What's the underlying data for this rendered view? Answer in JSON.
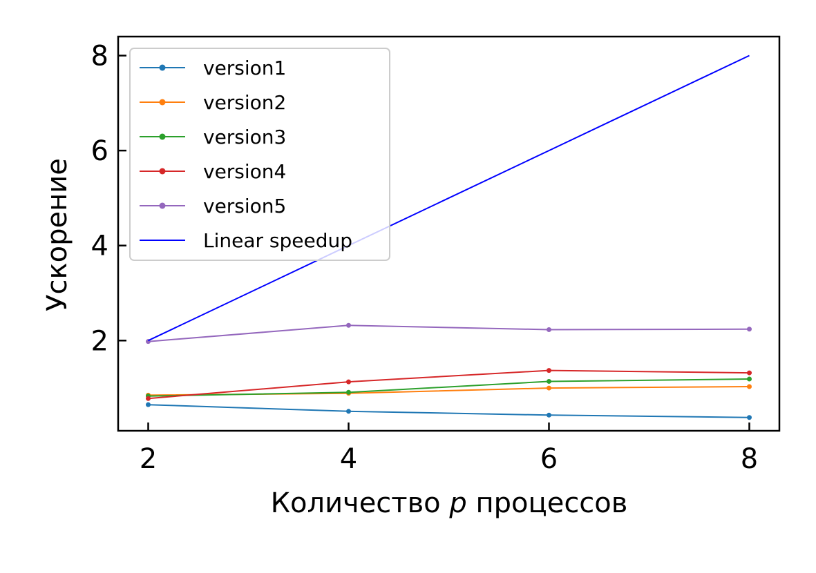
{
  "chart_data": {
    "type": "line",
    "title": "",
    "xlabel_prefix": "Количество ",
    "xlabel_var": "p",
    "xlabel_suffix": " процессов",
    "ylabel": "Ускорение",
    "x": [
      2,
      4,
      6,
      8
    ],
    "xlim": [
      1.7,
      8.3
    ],
    "ylim": [
      0.1,
      8.4
    ],
    "xticks": [
      2,
      4,
      6,
      8
    ],
    "yticks": [
      2,
      4,
      6,
      8
    ],
    "tick_direction": "in",
    "grid": false,
    "legend_position": "upper-left",
    "series": [
      {
        "name": "version1",
        "color": "#1f77b4",
        "marker": true,
        "values": [
          0.65,
          0.51,
          0.43,
          0.38
        ]
      },
      {
        "name": "version2",
        "color": "#ff7f0e",
        "marker": true,
        "values": [
          0.85,
          0.89,
          1.0,
          1.03
        ]
      },
      {
        "name": "version3",
        "color": "#2ca02c",
        "marker": true,
        "values": [
          0.83,
          0.91,
          1.14,
          1.19
        ]
      },
      {
        "name": "version4",
        "color": "#d62728",
        "marker": true,
        "values": [
          0.78,
          1.13,
          1.37,
          1.32
        ]
      },
      {
        "name": "version5",
        "color": "#9467bd",
        "marker": true,
        "values": [
          1.98,
          2.32,
          2.23,
          2.24
        ]
      },
      {
        "name": "Linear speedup",
        "color": "#0000ff",
        "marker": false,
        "values": [
          2,
          4,
          6,
          8
        ]
      }
    ]
  }
}
